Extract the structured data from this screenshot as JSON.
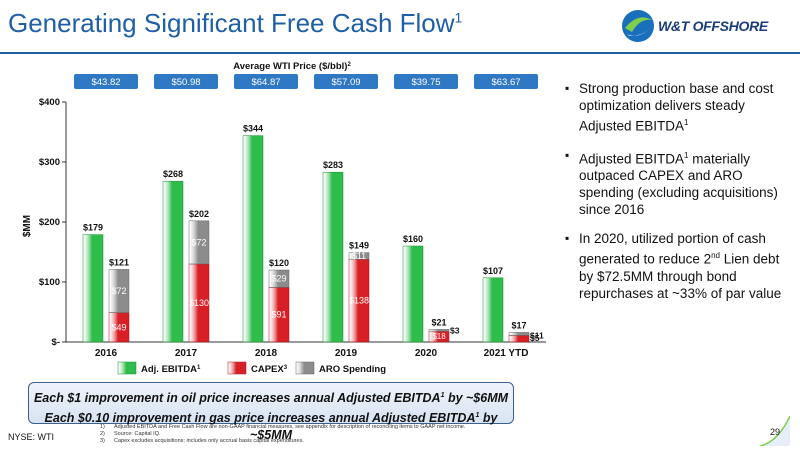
{
  "page": {
    "title": "Generating Significant Free Cash Flow",
    "title_sup": "1",
    "logo_text": "W&T OFFSHORE",
    "nyse_label": "NYSE: WTI",
    "page_number": "29"
  },
  "colors": {
    "title_blue": "#1f5fa6",
    "ebitda_green": "#2ebd4a",
    "capex_red": "#d91f26",
    "aro_gray": "#8c8c8c",
    "price_box_blue": "#2f78c4"
  },
  "chart_data": {
    "type": "bar",
    "stacked_columns": [
      "CAPEX",
      "ARO Spending"
    ],
    "categories": [
      "2016",
      "2017",
      "2018",
      "2019",
      "2020",
      "2021  YTD"
    ],
    "series": [
      {
        "name": "Adj. EBITDA",
        "values": [
          179,
          268,
          344,
          283,
          160,
          107
        ]
      },
      {
        "name": "CAPEX",
        "values": [
          49,
          130,
          91,
          138,
          18,
          11
        ]
      },
      {
        "name": "ARO Spending",
        "values": [
          72,
          72,
          29,
          11,
          3,
          5
        ]
      }
    ],
    "top_labels": {
      "ebitda": [
        "$179",
        "$268",
        "$344",
        "$283",
        "$160",
        "$107"
      ],
      "stack_total": [
        "$121",
        "$202",
        "$120",
        "$149",
        "$21",
        "$17"
      ]
    },
    "segment_labels": {
      "capex": [
        "$49",
        "$130",
        "$91",
        "$138",
        "$18",
        "$11"
      ],
      "aro": [
        "$72",
        "$72",
        "$29",
        "$11",
        "$3",
        "$5"
      ]
    },
    "ylabel": "$MM",
    "ylim": [
      0,
      400
    ],
    "yticks": [
      0,
      100,
      200,
      300,
      400
    ],
    "ytick_labels": [
      "$-",
      "$100",
      "$200",
      "$300",
      "$400"
    ],
    "wti_header": "Average WTI Price ($/bbl)",
    "wti_header_sup": "2",
    "wti_prices": [
      "$43.82",
      "$50.98",
      "$64.87",
      "$57.09",
      "$39.75",
      "$63.67"
    ],
    "legend": [
      {
        "label": "Adj. EBITDA",
        "sup": "1"
      },
      {
        "label": "CAPEX",
        "sup": "3"
      },
      {
        "label": "ARO Spending",
        "sup": ""
      }
    ],
    "legend_position": "bottom",
    "grid": false
  },
  "bullets": [
    {
      "text": "Strong production base and cost optimization delivers steady Adjusted EBITDA",
      "sup": "1",
      "tail": ""
    },
    {
      "text": "Adjusted EBITDA",
      "sup": "1",
      "tail": " materially outpaced CAPEX and ARO spending (excluding acquisitions) since 2016"
    },
    {
      "text": "In 2020, utilized portion of cash generated to reduce 2",
      "sup": "nd",
      "tail": " Lien debt by $72.5MM through bond repurchases at ~33% of par value"
    }
  ],
  "callout": {
    "line1": "Each $1 improvement in oil price increases annual Adjusted EBITDA",
    "line1_sup": "1",
    "line1_tail": " by ~$6MM",
    "line2": "Each $0.10 improvement in gas price increases annual Adjusted EBITDA",
    "line2_sup": "1",
    "line2_tail": " by ~$5MM"
  },
  "footnotes": [
    {
      "num": "1)",
      "text": "Adjusted EBITDA and Free Cash Flow are non-GAAP financial measures, see appendix for description of reconciling items to GAAP net income."
    },
    {
      "num": "2)",
      "text": "Source: Capital IQ."
    },
    {
      "num": "3)",
      "text": "Capex excludes acquisitions; includes only accrual basis capital expenditures."
    }
  ]
}
